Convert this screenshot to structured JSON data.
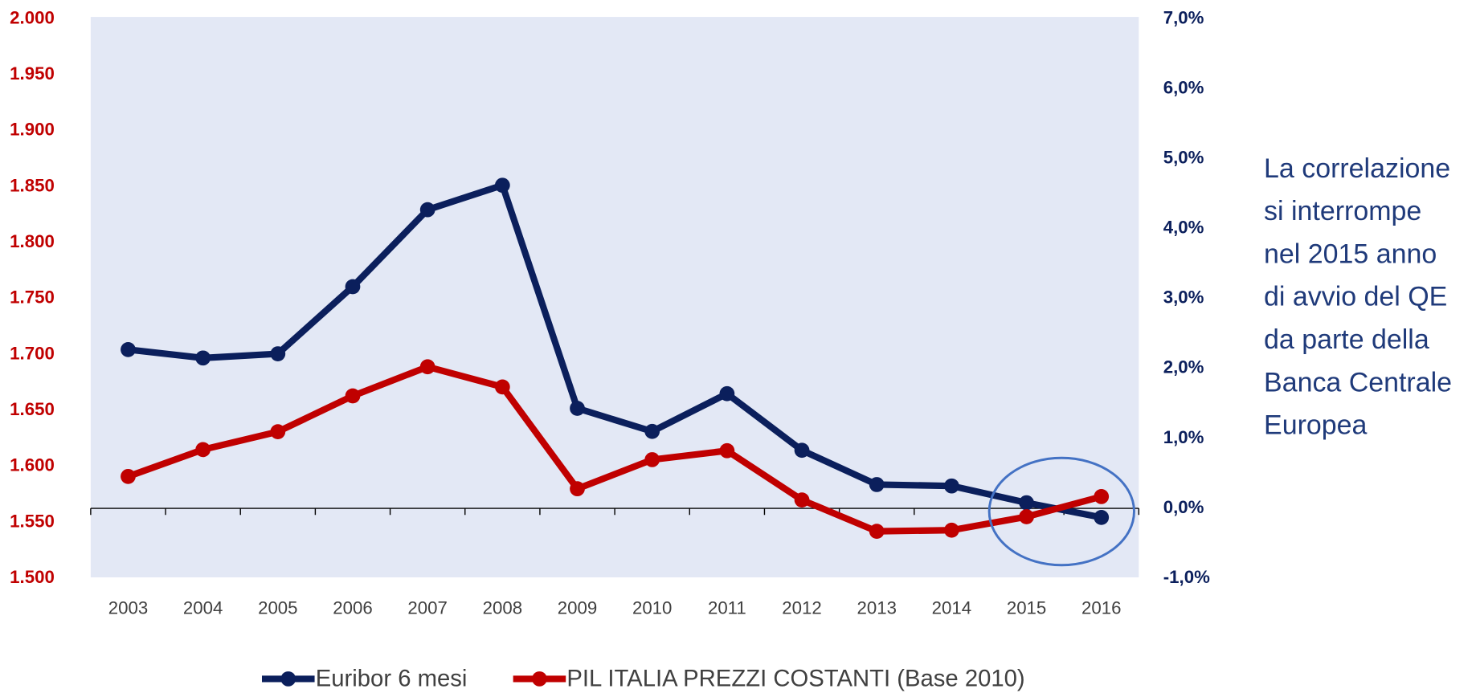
{
  "chart_data": {
    "type": "line",
    "categories": [
      "2003",
      "2004",
      "2005",
      "2006",
      "2007",
      "2008",
      "2009",
      "2010",
      "2011",
      "2012",
      "2013",
      "2014",
      "2015",
      "2016"
    ],
    "series": [
      {
        "name": "Euribor 6 mesi",
        "color": "#0b1f5c",
        "axis": "y2",
        "values": [
          2.27,
          2.15,
          2.21,
          3.17,
          4.27,
          4.62,
          1.43,
          1.1,
          1.64,
          0.83,
          0.34,
          0.32,
          0.08,
          -0.13
        ]
      },
      {
        "name": "PIL ITALIA PREZZI COSTANTI (Base 2010)",
        "color": "#c00000",
        "values": [
          1591,
          1615,
          1631,
          1663,
          1689,
          1671,
          1580,
          1606,
          1614,
          1570,
          1542,
          1543,
          1555,
          1573
        ]
      }
    ],
    "ylim": [
      1500,
      2000
    ],
    "yticks": [
      {
        "value": 1500,
        "label": "1.500"
      },
      {
        "value": 1550,
        "label": "1.550"
      },
      {
        "value": 1600,
        "label": "1.600"
      },
      {
        "value": 1650,
        "label": "1.650"
      },
      {
        "value": 1700,
        "label": "1.700"
      },
      {
        "value": 1750,
        "label": "1.750"
      },
      {
        "value": 1800,
        "label": "1.800"
      },
      {
        "value": 1850,
        "label": "1.850"
      },
      {
        "value": 1900,
        "label": "1.900"
      },
      {
        "value": 1950,
        "label": "1.950"
      },
      {
        "value": 2000,
        "label": "2.000"
      }
    ],
    "y2lim": [
      -1,
      7
    ],
    "y2ticks": [
      {
        "value": -1,
        "label": "-1,0%"
      },
      {
        "value": 0,
        "label": "0,0%"
      },
      {
        "value": 1,
        "label": "1,0%"
      },
      {
        "value": 2,
        "label": "2,0%"
      },
      {
        "value": 3,
        "label": "3,0%"
      },
      {
        "value": 4,
        "label": "4,0%"
      },
      {
        "value": 5,
        "label": "5,0%"
      },
      {
        "value": 6,
        "label": "6,0%"
      },
      {
        "value": 7,
        "label": "7,0%"
      }
    ],
    "annotation": [
      "La correlazione",
      "si interrompe",
      "nel 2015 anno",
      "di avvio del QE",
      "da parte della",
      "Banca Centrale",
      "Europea"
    ],
    "legend": "bottom"
  }
}
